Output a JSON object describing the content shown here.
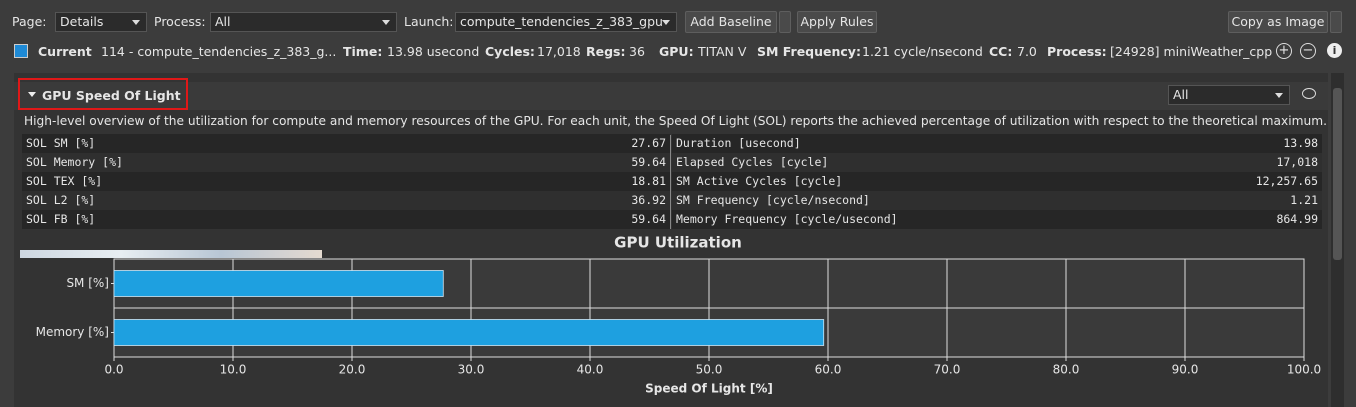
{
  "toolbar": {
    "page_label": "Page:",
    "page_value": "Details",
    "process_label": "Process:",
    "process_value": "All",
    "launch_label": "Launch:",
    "launch_value": "compute_tendencies_z_383_gpu",
    "add_baseline": "Add Baseline",
    "apply_rules": "Apply Rules",
    "copy_as_image": "Copy as Image"
  },
  "info": {
    "current": "Current",
    "kernel": "114 - compute_tendencies_z_383_g...",
    "time_label": "Time:",
    "time": "13.98 usecond",
    "cycles_label": "Cycles:",
    "cycles": "17,018",
    "regs_label": "Regs:",
    "regs": "36",
    "gpu_label": "GPU:",
    "gpu": "TITAN V",
    "smfreq_label": "SM Frequency:",
    "smfreq": "1.21 cycle/nsecond",
    "cc_label": "CC:",
    "cc": "7.0",
    "process_label": "Process:",
    "process": "[24928] miniWeather_cpp"
  },
  "section": {
    "title": "GPU Speed Of Light",
    "filter": "All",
    "description": "High-level overview of the utilization for compute and memory resources of the GPU. For each unit, the Speed Of Light (SOL) reports the achieved percentage of utilization with respect to the theoretical maximum.",
    "left_table": [
      [
        "SOL SM [%]",
        "27.67"
      ],
      [
        "SOL Memory [%]",
        "59.64"
      ],
      [
        "SOL TEX [%]",
        "18.81"
      ],
      [
        "SOL L2 [%]",
        "36.92"
      ],
      [
        "SOL FB [%]",
        "59.64"
      ]
    ],
    "right_table": [
      [
        "Duration [usecond]",
        "13.98"
      ],
      [
        "Elapsed Cycles [cycle]",
        "17,018"
      ],
      [
        "SM Active Cycles [cycle]",
        "12,257.65"
      ],
      [
        "SM Frequency [cycle/nsecond]",
        "1.21"
      ],
      [
        "Memory Frequency [cycle/usecond]",
        "864.99"
      ]
    ]
  },
  "chart_data": {
    "type": "hbar",
    "title": "GPU Utilization",
    "xlabel": "Speed Of Light [%]",
    "categories": [
      "SM [%]",
      "Memory [%]"
    ],
    "values": [
      27.67,
      59.64
    ],
    "color": "#1ea0e0",
    "xlim": [
      0,
      100
    ],
    "xticks": [
      {
        "value": 0,
        "label": "0.0"
      },
      {
        "value": 10,
        "label": "10.0"
      },
      {
        "value": 20,
        "label": "20.0"
      },
      {
        "value": 30,
        "label": "30.0"
      },
      {
        "value": 40,
        "label": "40.0"
      },
      {
        "value": 50,
        "label": "50.0"
      },
      {
        "value": 60,
        "label": "60.0"
      },
      {
        "value": 70,
        "label": "70.0"
      },
      {
        "value": 80,
        "label": "80.0"
      },
      {
        "value": 90,
        "label": "90.0"
      },
      {
        "value": 100,
        "label": "100.0"
      }
    ],
    "grid": true
  }
}
